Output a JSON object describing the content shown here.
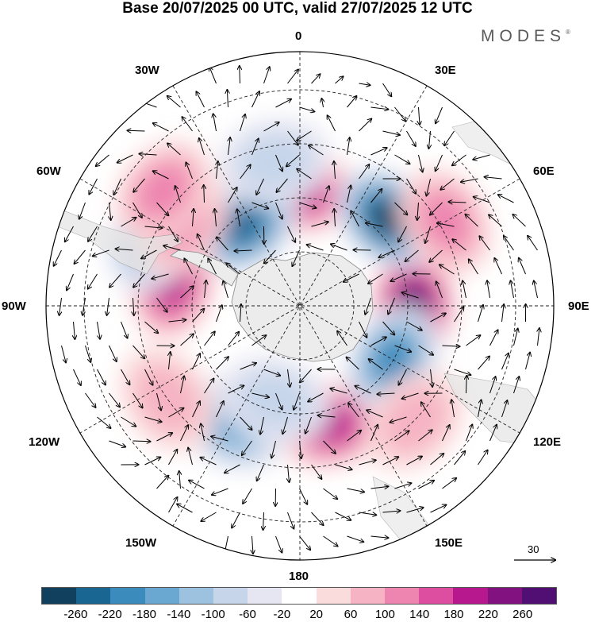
{
  "title": "Base 20/07/2025 00 UTC, valid 27/07/2025 12 UTC",
  "brand": {
    "name": "MODES",
    "mark": "®"
  },
  "labels": {
    "north": "0",
    "south": "180",
    "west": "90W",
    "east": "90E",
    "nw30": "30W",
    "ne30": "30E",
    "nw60": "60W",
    "ne60": "60E",
    "sw120": "120W",
    "se120": "120E",
    "sw150": "150W",
    "se150": "150E"
  },
  "reference_vector": {
    "value": "30"
  },
  "colorbar": {
    "colors": [
      "#10405e",
      "#1a6693",
      "#3b8bbc",
      "#6aa8d1",
      "#9cc2e0",
      "#c6d5ea",
      "#e6e6f2",
      "#ffffff",
      "#fbdcdc",
      "#f6b3c3",
      "#ee85b0",
      "#dd4ea1",
      "#b8188e",
      "#82127f",
      "#520f73"
    ],
    "ticks": [
      "-260",
      "-220",
      "-180",
      "-140",
      "-100",
      "-60",
      "-20",
      "20",
      "60",
      "100",
      "140",
      "180",
      "220",
      "260"
    ]
  },
  "anomalies": [
    {
      "name": "ne-positive-1",
      "lon": 0,
      "lat": -55,
      "value": 180
    },
    {
      "name": "e-positive-main",
      "lon": 90,
      "lat": -55,
      "value": 270
    },
    {
      "name": "ne-negative",
      "lon": 45,
      "lat": -52,
      "value": -260
    },
    {
      "name": "nw-negative",
      "lon": -35,
      "lat": -60,
      "value": -240
    },
    {
      "name": "w-positive",
      "lon": -80,
      "lat": -50,
      "value": 200
    },
    {
      "name": "s-positive",
      "lon": 165,
      "lat": -52,
      "value": 200
    },
    {
      "name": "se-negative",
      "lon": 120,
      "lat": -57,
      "value": -200
    },
    {
      "name": "sw-negative",
      "lon": -150,
      "lat": -48,
      "value": -150
    },
    {
      "name": "far-w-negative",
      "lon": -65,
      "lat": -40,
      "value": -150
    },
    {
      "name": "w-positive-2",
      "lon": -55,
      "lat": -45,
      "value": 120
    },
    {
      "name": "far-nw-positive",
      "lon": -50,
      "lat": -35,
      "value": 100
    },
    {
      "name": "ne-pos-far",
      "lon": 60,
      "lat": -38,
      "value": 100
    },
    {
      "name": "sw-positive-2",
      "lon": -125,
      "lat": -40,
      "value": 80
    },
    {
      "name": "s-negative-2",
      "lon": -165,
      "lat": -60,
      "value": -60
    },
    {
      "name": "se-positive-2",
      "lon": 135,
      "lat": -40,
      "value": 60
    },
    {
      "name": "n-negative-2",
      "lon": -10,
      "lat": -45,
      "value": -80
    }
  ]
}
